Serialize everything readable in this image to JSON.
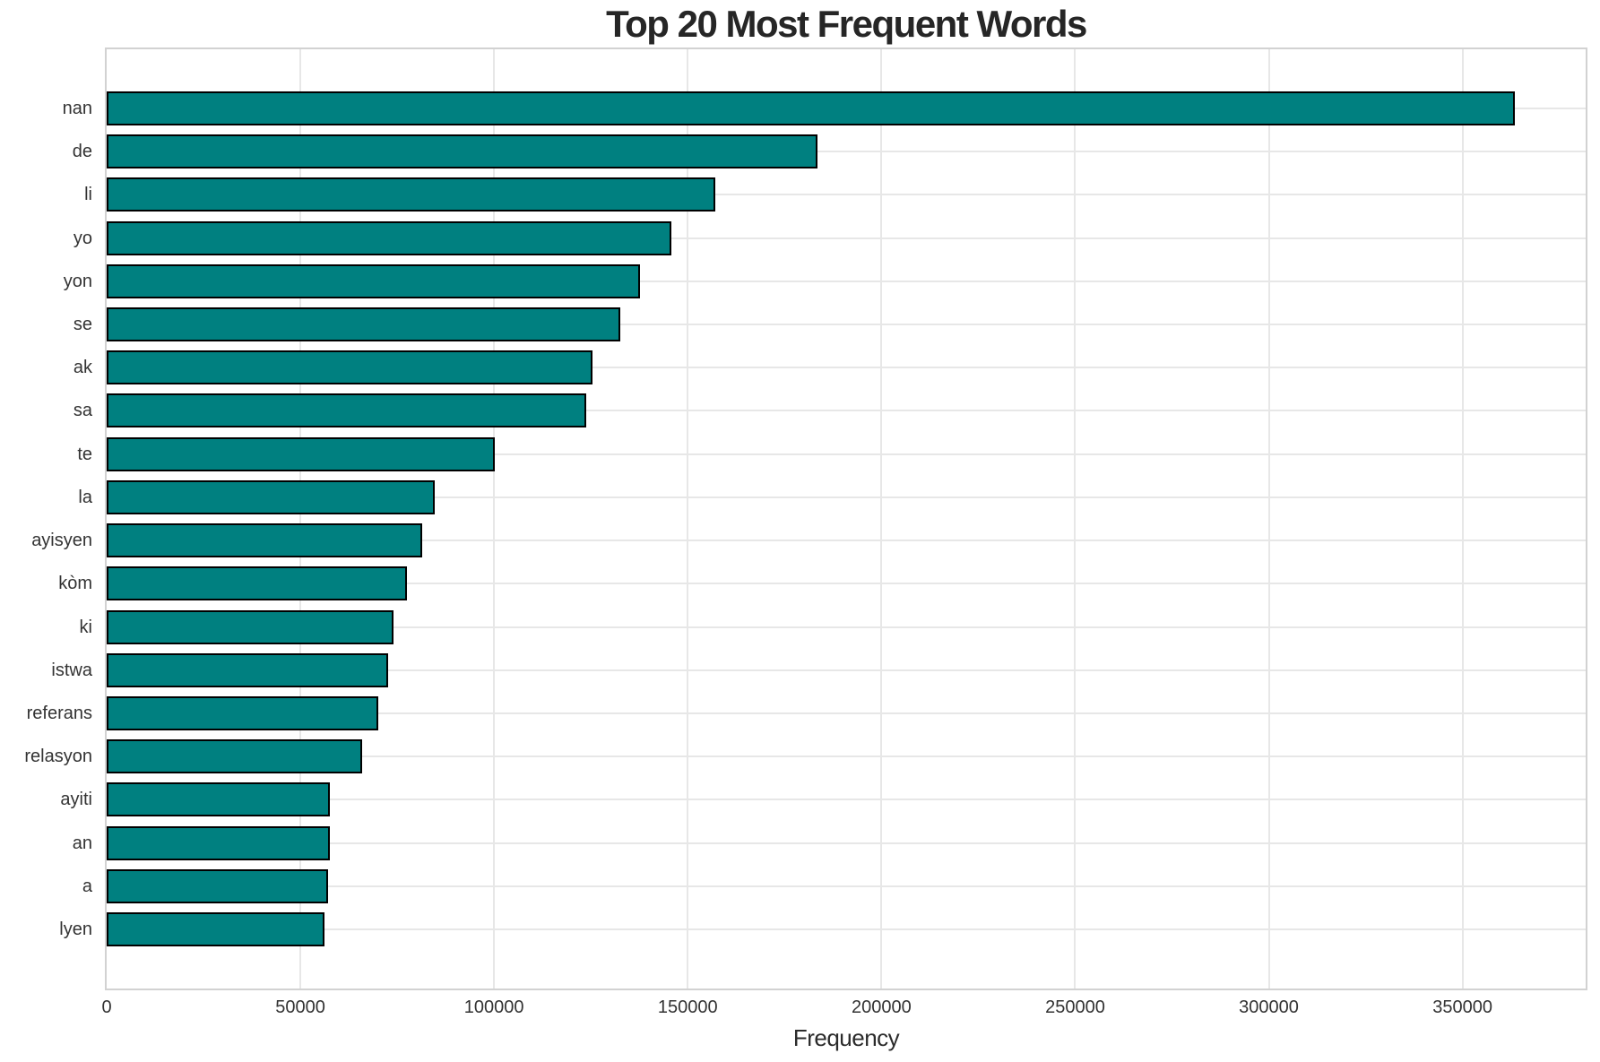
{
  "chart_data": {
    "type": "bar",
    "orientation": "horizontal",
    "title": "Top 20 Most Frequent Words",
    "xlabel": "Frequency",
    "ylabel": "",
    "categories": [
      "nan",
      "de",
      "li",
      "yo",
      "yon",
      "se",
      "ak",
      "sa",
      "te",
      "la",
      "ayisyen",
      "kòm",
      "ki",
      "istwa",
      "referans",
      "relasyon",
      "ayiti",
      "an",
      "a",
      "lyen"
    ],
    "values": [
      363600,
      183400,
      157000,
      145800,
      137700,
      132600,
      125500,
      123900,
      100300,
      84600,
      81500,
      77500,
      74000,
      72700,
      70000,
      66000,
      57700,
      57600,
      57200,
      56300
    ],
    "xticks": [
      0,
      50000,
      100000,
      150000,
      200000,
      250000,
      300000,
      350000
    ],
    "xtick_labels": [
      "0",
      "50000",
      "100000",
      "150000",
      "200000",
      "250000",
      "300000",
      "350000"
    ],
    "xlim": [
      0,
      381780
    ],
    "grid": true,
    "legend": "none",
    "bar_color": "#008080",
    "bar_edge_color": "#000000",
    "gridline_color": "#e7e7e7",
    "spine_color": "#d2d2d2",
    "title_color": "#262626",
    "tick_label_color": "#333333"
  }
}
